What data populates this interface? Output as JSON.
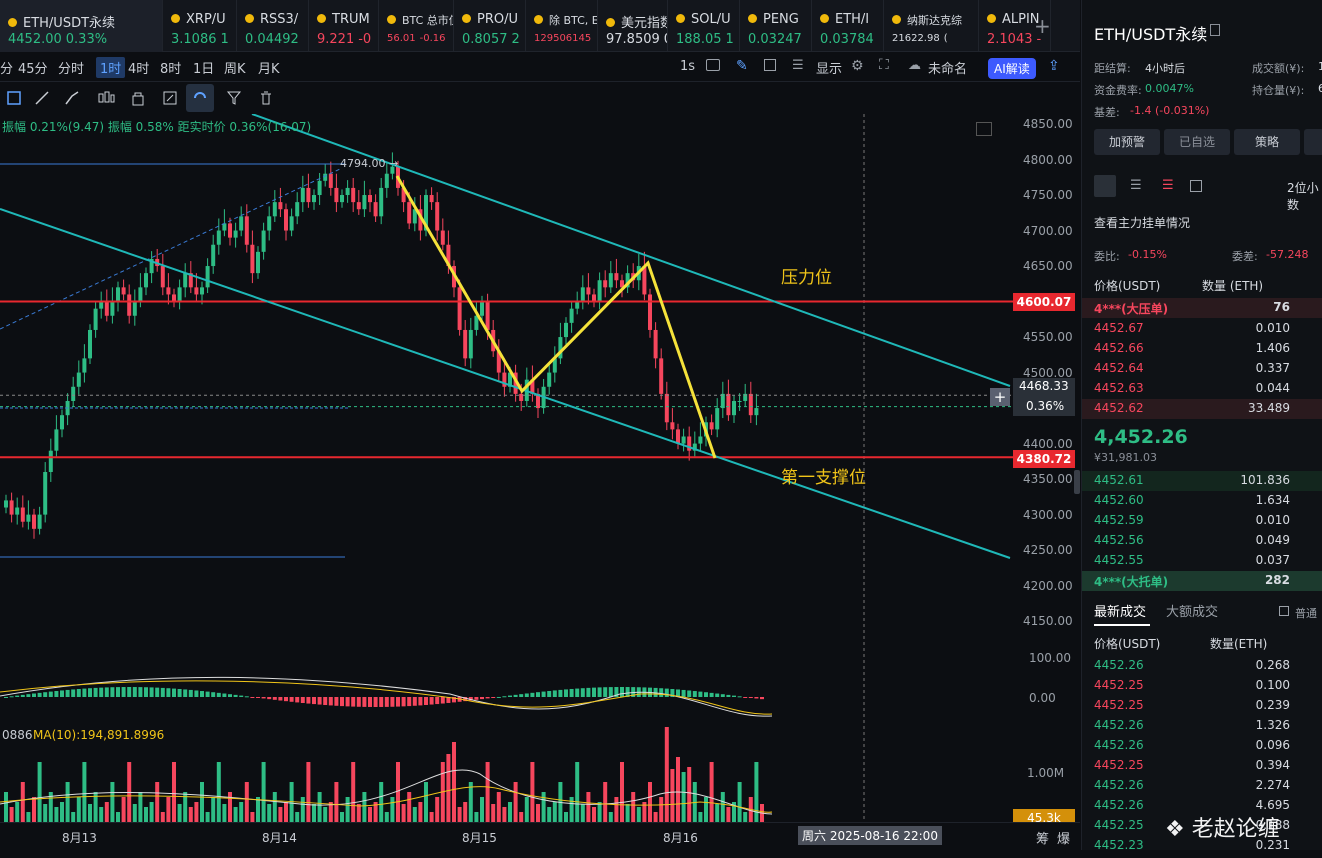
{
  "tickers": [
    {
      "name": "ETH/USDT永续",
      "price": "4452.00",
      "change": "0.33%",
      "dir": "up"
    },
    {
      "name": "XRP/U",
      "price": "3.1086",
      "change": "1",
      "dir": "up"
    },
    {
      "name": "RSS3/",
      "price": "0.04492",
      "change": "",
      "dir": "up"
    },
    {
      "name": "TRUM",
      "price": "9.221",
      "change": "-0",
      "dir": "dn"
    },
    {
      "name": "BTC 总市值",
      "price": "56.01",
      "change": "-0.16",
      "dir": "dn"
    },
    {
      "name": "PRO/U",
      "price": "0.8057",
      "change": "2",
      "dir": "up"
    },
    {
      "name": "除 BTC, ET",
      "price": "129506145",
      "change": "",
      "dir": "dn"
    },
    {
      "name": "美元指数",
      "price": "97.8509",
      "change": "0.",
      "dir": "neutral"
    },
    {
      "name": "SOL/U",
      "price": "188.05",
      "change": "1",
      "dir": "up"
    },
    {
      "name": "PENG",
      "price": "0.03247",
      "change": "",
      "dir": "up"
    },
    {
      "name": "ETH/I",
      "price": "0.03784",
      "change": "",
      "dir": "up"
    },
    {
      "name": "纳斯达克综",
      "price": "21622.98",
      "change": "(",
      "dir": "neutral"
    },
    {
      "name": "ALPIN",
      "price": "2.1043",
      "change": "-",
      "dir": "dn"
    }
  ],
  "timeframes": [
    "分",
    "45分",
    "分时",
    "1时",
    "4时",
    "8时",
    "1日",
    "周K",
    "月K"
  ],
  "selected_timeframe": "1时",
  "toolbar_right": {
    "interval": "1s",
    "display": "显示",
    "timezone": "未命名",
    "ai": "AI解读"
  },
  "stats": {
    "text": "振幅 0.21%(9.47)  振幅 0.58%  距实时价 0.36%(16.07)"
  },
  "chart_data": {
    "type": "candlestick",
    "symbol": "ETH/USDT永续",
    "interval": "1H",
    "y_ticks": [
      4850,
      4800,
      4750,
      4700,
      4650,
      4600,
      4550,
      4500,
      4450,
      4400,
      4350,
      4300,
      4250,
      4200,
      4150
    ],
    "x_labels": [
      "8月13",
      "8月14",
      "8月15",
      "8月16"
    ],
    "high_marker": "4794.00 →",
    "current_price": "4468.33",
    "current_pct": "0.36%",
    "resistance": {
      "price": "4600.07",
      "label": "压力位"
    },
    "support": {
      "price": "4380.72",
      "label": "第一支撑位"
    },
    "macd_ticks": [
      "100.00",
      "0.00"
    ],
    "volume_ticks": [
      "1.00M"
    ],
    "volume_ma": "MA(10):194,891.8996",
    "volume_prefix": "0886",
    "volume_current": "45.3k",
    "crosshair_time": "周六 2025-08-16 22:00",
    "colors": {
      "up": "#2ebd85",
      "down": "#f6465d",
      "channel": "#1fb8b8",
      "zigzag": "#f5e23a",
      "level": "#e8282f",
      "label_text": "#f0c419"
    }
  },
  "sidebar": {
    "title": "ETH/USDT永续",
    "settle_label": "距结算:",
    "settle_value": "4小时后",
    "volume_label": "成交额(¥):",
    "volume_value": "1",
    "funding_label": "资金费率:",
    "funding_value": "0.0047%",
    "oi_label": "持仓量(¥):",
    "oi_value": "6",
    "basis_label": "基差:",
    "basis_value": "-1.4 (-0.031%)",
    "buttons": [
      "加预警",
      "已自选",
      "策略"
    ],
    "precision": "2位小数",
    "depth_link": "查看主力挂单情况",
    "ratio_label": "委比:",
    "ratio_value": "-0.15%",
    "diff_label": "委差:",
    "diff_value": "-57.248",
    "col_price": "价格(USDT)",
    "col_qty": "数量 (ETH)",
    "ask_big": {
      "price": "4***(大压单)",
      "qty": "76"
    },
    "asks": [
      [
        "4452.67",
        "0.010"
      ],
      [
        "4452.66",
        "1.406"
      ],
      [
        "4452.64",
        "0.337"
      ],
      [
        "4452.63",
        "0.044"
      ],
      [
        "4452.62",
        "33.489"
      ]
    ],
    "mid_price": "4,452.26",
    "mid_cny": "¥31,981.03",
    "bids": [
      [
        "4452.61",
        "101.836"
      ],
      [
        "4452.60",
        "1.634"
      ],
      [
        "4452.59",
        "0.010"
      ],
      [
        "4452.56",
        "0.049"
      ],
      [
        "4452.55",
        "0.037"
      ]
    ],
    "bid_big": {
      "price": "4***(大托单)",
      "qty": "282"
    },
    "trades_tab": "最新成交",
    "big_trades_tab": "大额成交",
    "normal": "普通",
    "trade_col_price": "价格(USDT)",
    "trade_col_qty": "数量(ETH)",
    "trades": [
      [
        "4452.26",
        "0.268",
        "up"
      ],
      [
        "4452.25",
        "0.100",
        "dn"
      ],
      [
        "4452.25",
        "0.239",
        "dn"
      ],
      [
        "4452.26",
        "1.326",
        "up"
      ],
      [
        "4452.26",
        "0.096",
        "up"
      ],
      [
        "4452.25",
        "0.394",
        "dn"
      ],
      [
        "4452.26",
        "2.274",
        "up"
      ],
      [
        "4452.26",
        "4.695",
        "up"
      ],
      [
        "4452.25",
        "0.188",
        "up"
      ],
      [
        "4452.23",
        "0.231",
        "up"
      ]
    ]
  },
  "bottom": {
    "right1": "筹",
    "right2": "爆"
  },
  "watermark": "老赵论缠"
}
